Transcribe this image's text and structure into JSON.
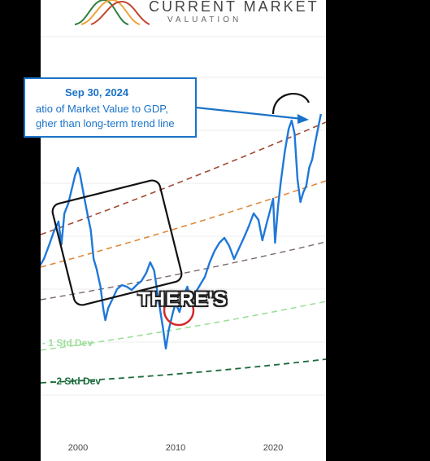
{
  "brand": {
    "line1": "CURRENT MARKET",
    "line2": "VALUATION",
    "logo_colors": [
      "#2e7d3c",
      "#f2a23a",
      "#c2452d"
    ]
  },
  "callout": {
    "date": "Sep 30, 2024",
    "line1": "atio of Market Value to GDP,",
    "line2": "gher than long-term trend line"
  },
  "caption": "THERE'S",
  "colors": {
    "series": "#1f78d9",
    "plus2": "#a24a34",
    "plus1": "#e08a3a",
    "trend": "#7a6a6a",
    "minus1": "#9ddf9a",
    "minus2": "#1c6b3c",
    "callout_border": "#1a73c8",
    "callout_title": "#1a73c8",
    "highlight_circle": "#d42a2a"
  },
  "chart_data": {
    "type": "line",
    "x_tick_labels": [
      "2000",
      "2010",
      "2020"
    ],
    "band_labels": [
      "- 1 Std Dev",
      "- 2 Std Dev"
    ],
    "series": [
      {
        "values": [
          [
            1995.0,
            355
          ],
          [
            1995.5,
            340
          ],
          [
            1996.0,
            328
          ],
          [
            1996.5,
            318
          ],
          [
            1997.0,
            302
          ],
          [
            1997.5,
            285
          ],
          [
            1998.0,
            272
          ],
          [
            1998.3,
            300
          ],
          [
            1998.6,
            262
          ],
          [
            1999.0,
            250
          ],
          [
            1999.3,
            235
          ],
          [
            1999.7,
            215
          ],
          [
            2000.0,
            206
          ],
          [
            2000.2,
            214
          ],
          [
            2000.6,
            240
          ],
          [
            2001.0,
            265
          ],
          [
            2001.3,
            282
          ],
          [
            2001.6,
            318
          ],
          [
            2001.9,
            330
          ],
          [
            2002.3,
            352
          ],
          [
            2002.6,
            380
          ],
          [
            2002.8,
            393
          ],
          [
            2003.1,
            378
          ],
          [
            2003.5,
            368
          ],
          [
            2004.0,
            355
          ],
          [
            2004.5,
            350
          ],
          [
            2005.0,
            352
          ],
          [
            2005.5,
            356
          ],
          [
            2006.0,
            350
          ],
          [
            2006.5,
            345
          ],
          [
            2007.0,
            335
          ],
          [
            2007.4,
            322
          ],
          [
            2007.8,
            332
          ],
          [
            2008.3,
            372
          ],
          [
            2008.7,
            402
          ],
          [
            2009.0,
            428
          ],
          [
            2009.3,
            405
          ],
          [
            2009.7,
            385
          ],
          [
            2010.0,
            372
          ],
          [
            2010.4,
            383
          ],
          [
            2010.8,
            365
          ],
          [
            2011.2,
            352
          ],
          [
            2011.6,
            370
          ],
          [
            2012.0,
            360
          ],
          [
            2012.5,
            350
          ],
          [
            2013.0,
            340
          ],
          [
            2013.5,
            322
          ],
          [
            2014.0,
            308
          ],
          [
            2014.5,
            298
          ],
          [
            2015.0,
            292
          ],
          [
            2015.5,
            302
          ],
          [
            2016.0,
            318
          ],
          [
            2016.5,
            305
          ],
          [
            2017.0,
            292
          ],
          [
            2017.5,
            278
          ],
          [
            2018.0,
            262
          ],
          [
            2018.5,
            270
          ],
          [
            2018.9,
            295
          ],
          [
            2019.3,
            276
          ],
          [
            2019.7,
            258
          ],
          [
            2020.0,
            244
          ],
          [
            2020.2,
            298
          ],
          [
            2020.5,
            254
          ],
          [
            2020.8,
            222
          ],
          [
            2021.2,
            186
          ],
          [
            2021.6,
            158
          ],
          [
            2021.9,
            148
          ],
          [
            2022.2,
            164
          ],
          [
            2022.5,
            220
          ],
          [
            2022.8,
            248
          ],
          [
            2023.1,
            236
          ],
          [
            2023.4,
            228
          ],
          [
            2023.7,
            206
          ],
          [
            2024.0,
            196
          ],
          [
            2024.3,
            176
          ],
          [
            2024.6,
            158
          ],
          [
            2024.9,
            140
          ]
        ]
      }
    ],
    "bands": [
      {
        "name": "+2",
        "style": "dashed",
        "y_start": 288,
        "y_end": 150
      },
      {
        "name": "+1",
        "style": "dashed",
        "y_start": 328,
        "y_end": 222
      },
      {
        "name": "trend",
        "style": "dashed",
        "y_start": 368,
        "y_end": 297
      },
      {
        "name": "-1",
        "style": "dashed",
        "y_start": 430,
        "y_end": 370
      },
      {
        "name": "-2",
        "style": "dashed",
        "y_start": 470,
        "y_end": 441
      }
    ],
    "grid": "horizontal"
  }
}
